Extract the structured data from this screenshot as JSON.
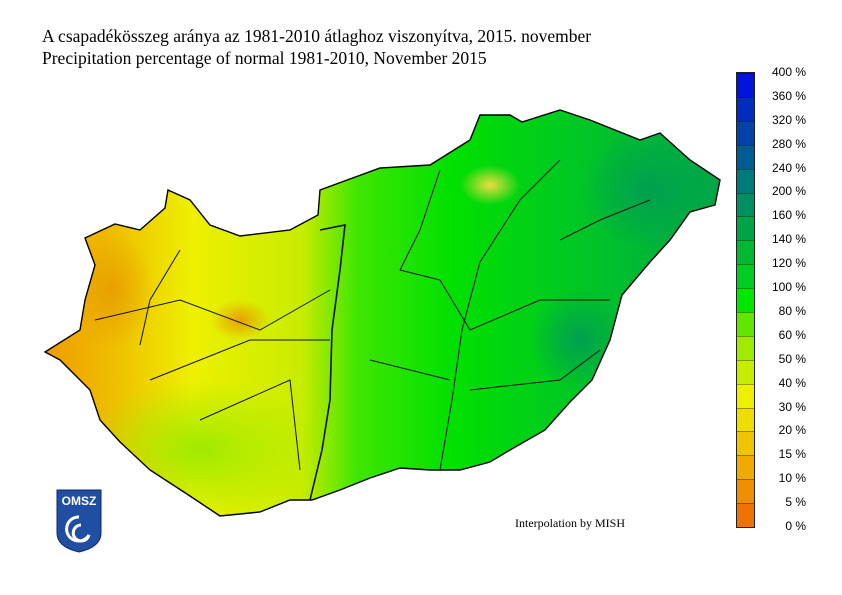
{
  "title_hu": "A csapadékösszeg aránya az 1981-2010 átlaghoz viszonyítva, 2015. november",
  "title_en": "Precipitation percentage of normal 1981-2010, November 2015",
  "credit": "Interpolation by MISH",
  "logo": {
    "text": "OMSZ",
    "color": "#1f4ea3"
  },
  "legend": {
    "labels": [
      "0 %",
      "5 %",
      "10 %",
      "15 %",
      "20 %",
      "30 %",
      "40 %",
      "50 %",
      "60 %",
      "80 %",
      "100 %",
      "120 %",
      "140 %",
      "160 %",
      "200 %",
      "240 %",
      "280 %",
      "320 %",
      "360 %",
      "400 %"
    ],
    "colors": [
      "#ee7300",
      "#ef8f00",
      "#f0aa00",
      "#efc400",
      "#efdc00",
      "#eef000",
      "#c8ec00",
      "#9fea00",
      "#62e600",
      "#00e800",
      "#00cc22",
      "#00b832",
      "#00a448",
      "#008e62",
      "#007a78",
      "#005c90",
      "#0044a8",
      "#002cc0",
      "#0014dc"
    ]
  },
  "map": {
    "region": "Hungary",
    "dominant_west": "20-40 %",
    "dominant_east": "80-140 %"
  }
}
